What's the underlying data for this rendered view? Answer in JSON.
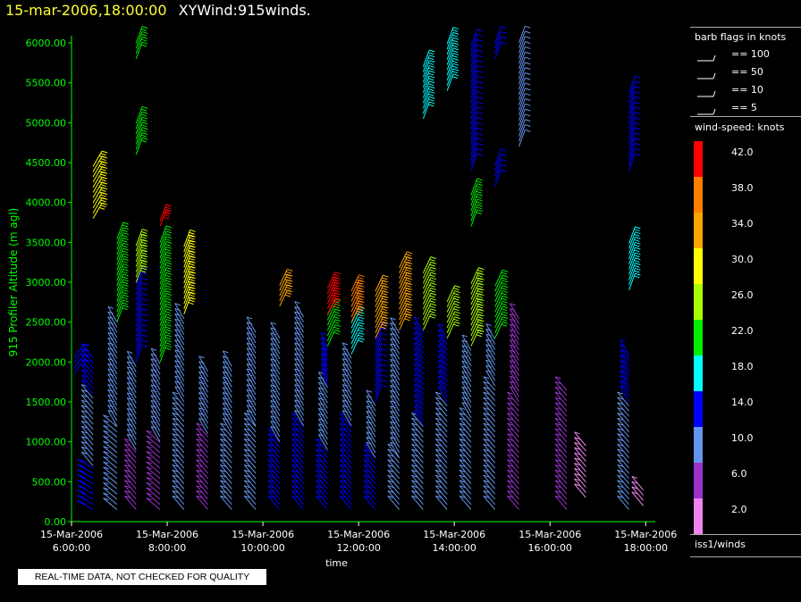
{
  "header": {
    "date": "15-mar-2006,18:00:00",
    "title": "XYWind:915winds."
  },
  "chart_data": {
    "type": "wind-barb profile time-height",
    "ylabel": "915 Profiler Altitude (m agl)",
    "xlabel": "time",
    "ylim": [
      0,
      6000
    ],
    "yticks": [
      "0.00",
      "500.00",
      "1000.00",
      "1500.00",
      "2000.00",
      "2500.00",
      "3000.00",
      "3500.00",
      "4000.00",
      "4500.00",
      "5000.00",
      "5500.00",
      "6000.00"
    ],
    "xticks": [
      {
        "date": "15-Mar-2006",
        "time": "6:00:00"
      },
      {
        "date": "15-Mar-2006",
        "time": "8:00:00"
      },
      {
        "date": "15-Mar-2006",
        "time": "10:00:00"
      },
      {
        "date": "15-Mar-2006",
        "time": "12:00:00"
      },
      {
        "date": "15-Mar-2006",
        "time": "14:00:00"
      },
      {
        "date": "15-Mar-2006",
        "time": "16:00:00"
      },
      {
        "date": "15-Mar-2006",
        "time": "18:00:00"
      }
    ],
    "xlim_hours": [
      6.0,
      18.2
    ],
    "profiles": [
      {
        "t": 6.05,
        "segs": [
          [
            1850,
            2050,
            12,
            35
          ]
        ]
      },
      {
        "t": 6.45,
        "segs": [
          [
            150,
            700,
            15,
            -60
          ],
          [
            700,
            1600,
            11,
            -40
          ],
          [
            1600,
            2100,
            12,
            -40
          ],
          [
            3800,
            4450,
            31,
            30
          ]
        ]
      },
      {
        "t": 6.95,
        "segs": [
          [
            150,
            1200,
            11,
            -50
          ],
          [
            1200,
            2500,
            11,
            -30
          ],
          [
            2500,
            3550,
            22,
            20
          ]
        ]
      },
      {
        "t": 7.35,
        "segs": [
          [
            150,
            900,
            7,
            -40
          ],
          [
            900,
            2000,
            10,
            -30
          ],
          [
            2000,
            3000,
            13,
            20
          ],
          [
            3000,
            3500,
            26,
            20
          ],
          [
            4600,
            5050,
            20,
            20
          ],
          [
            5800,
            6050,
            20,
            20
          ]
        ]
      },
      {
        "t": 7.85,
        "segs": [
          [
            150,
            1000,
            7,
            -50
          ],
          [
            1000,
            2000,
            10,
            -30
          ],
          [
            2000,
            3550,
            22,
            20
          ],
          [
            3700,
            3800,
            42,
            20
          ]
        ]
      },
      {
        "t": 8.35,
        "segs": [
          [
            150,
            1500,
            8,
            -40
          ],
          [
            1500,
            2600,
            10,
            -30
          ],
          [
            2600,
            3450,
            30,
            20
          ]
        ]
      },
      {
        "t": 8.85,
        "segs": [
          [
            150,
            1100,
            7,
            -40
          ],
          [
            1100,
            1900,
            9,
            -30
          ]
        ]
      },
      {
        "t": 9.35,
        "segs": [
          [
            150,
            1100,
            10,
            -40
          ],
          [
            1100,
            2000,
            9,
            -30
          ]
        ]
      },
      {
        "t": 9.85,
        "segs": [
          [
            150,
            1200,
            11,
            -40
          ],
          [
            1200,
            2400,
            9,
            -30
          ]
        ]
      },
      {
        "t": 10.35,
        "segs": [
          [
            150,
            1000,
            12,
            -40
          ],
          [
            1000,
            2300,
            9,
            -30
          ],
          [
            2700,
            3000,
            34,
            25
          ]
        ]
      },
      {
        "t": 10.85,
        "segs": [
          [
            150,
            1200,
            14,
            -40
          ],
          [
            1200,
            2600,
            10,
            -30
          ]
        ]
      },
      {
        "t": 11.35,
        "segs": [
          [
            150,
            900,
            14,
            -40
          ],
          [
            900,
            1700,
            11,
            -30
          ],
          [
            1700,
            2200,
            12,
            -20
          ],
          [
            2200,
            2600,
            22,
            25
          ],
          [
            2600,
            2950,
            40,
            25
          ]
        ]
      },
      {
        "t": 11.85,
        "segs": [
          [
            150,
            1200,
            14,
            -40
          ],
          [
            1200,
            2100,
            10,
            -30
          ],
          [
            2100,
            2500,
            16,
            25
          ],
          [
            2500,
            2950,
            38,
            25
          ]
        ]
      },
      {
        "t": 12.35,
        "segs": [
          [
            150,
            800,
            13,
            -40
          ],
          [
            800,
            1500,
            10,
            -30
          ],
          [
            1500,
            2300,
            14,
            20
          ],
          [
            2300,
            2900,
            34,
            25
          ]
        ]
      },
      {
        "t": 12.85,
        "segs": [
          [
            150,
            800,
            11,
            -40
          ],
          [
            800,
            2400,
            11,
            -30
          ],
          [
            2400,
            3200,
            33,
            25
          ]
        ]
      },
      {
        "t": 13.35,
        "segs": [
          [
            150,
            1200,
            10,
            -40
          ],
          [
            1200,
            2400,
            12,
            -30
          ],
          [
            2400,
            3150,
            24,
            25
          ],
          [
            5050,
            5750,
            18,
            20
          ]
        ]
      },
      {
        "t": 13.85,
        "segs": [
          [
            150,
            1500,
            9,
            -40
          ],
          [
            1500,
            2300,
            14,
            -30
          ],
          [
            2300,
            2800,
            24,
            25
          ],
          [
            5400,
            6000,
            18,
            20
          ]
        ]
      },
      {
        "t": 14.35,
        "segs": [
          [
            150,
            1300,
            10,
            -40
          ],
          [
            1300,
            2200,
            8,
            -30
          ],
          [
            2200,
            3000,
            26,
            25
          ],
          [
            3700,
            4100,
            22,
            20
          ],
          [
            4400,
            6000,
            14,
            20
          ]
        ]
      },
      {
        "t": 14.85,
        "segs": [
          [
            150,
            1700,
            8,
            -40
          ],
          [
            1700,
            2300,
            10,
            -30
          ],
          [
            2300,
            3000,
            20,
            25
          ],
          [
            4200,
            4500,
            14,
            20
          ],
          [
            5800,
            6000,
            14,
            20
          ]
        ]
      },
      {
        "t": 15.35,
        "segs": [
          [
            150,
            1500,
            6,
            -40
          ],
          [
            1500,
            2600,
            7,
            -30
          ],
          [
            4700,
            6000,
            8,
            20
          ]
        ]
      },
      {
        "t": 16.35,
        "segs": [
          [
            150,
            1700,
            4,
            -40
          ]
        ]
      },
      {
        "t": 16.75,
        "segs": [
          [
            300,
            950,
            3,
            -40
          ]
        ]
      },
      {
        "t": 17.65,
        "segs": [
          [
            150,
            1500,
            10,
            -40
          ],
          [
            1500,
            2100,
            12,
            -30
          ],
          [
            2900,
            3500,
            16,
            20
          ],
          [
            4400,
            5400,
            14,
            20
          ]
        ]
      },
      {
        "t": 17.95,
        "segs": [
          [
            200,
            400,
            2,
            -40
          ]
        ]
      }
    ]
  },
  "legend": {
    "flags_title": "barb flags in knots",
    "flags": [
      "== 100",
      "== 50",
      "== 10",
      "== 5"
    ],
    "scale_title": "wind-speed: knots",
    "scale": [
      {
        "label": "42.0",
        "color": "#ff0000"
      },
      {
        "label": "38.0",
        "color": "#ff7f00"
      },
      {
        "label": "34.0",
        "color": "#ffa500"
      },
      {
        "label": "30.0",
        "color": "#ffff00"
      },
      {
        "label": "26.0",
        "color": "#aaff00"
      },
      {
        "label": "22.0",
        "color": "#00ee00"
      },
      {
        "label": "18.0",
        "color": "#00ffff"
      },
      {
        "label": "14.0",
        "color": "#0000ff"
      },
      {
        "label": "10.0",
        "color": "#6495ed"
      },
      {
        "label": "6.0",
        "color": "#9932cc"
      },
      {
        "label": "2.0",
        "color": "#ee82ee"
      }
    ],
    "source": "iss1/winds"
  },
  "note": "REAL-TIME DATA, NOT CHECKED FOR QUALITY",
  "colors": {
    "axis": "#00ff00",
    "header_date": "#ffff33"
  }
}
